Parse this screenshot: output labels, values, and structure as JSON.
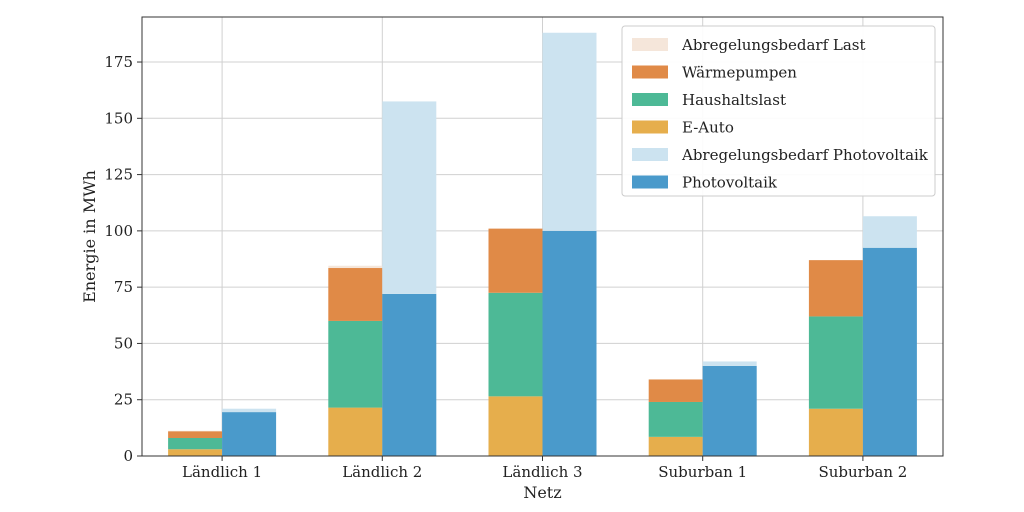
{
  "chart_data": {
    "type": "bar",
    "stacked": true,
    "grouped": true,
    "title": "",
    "xlabel": "Netz",
    "ylabel": "Energie in MWh",
    "ylim": [
      0,
      195
    ],
    "yticks": [
      0,
      25,
      50,
      75,
      100,
      125,
      150,
      175
    ],
    "grid": true,
    "legend_position": "top-right",
    "categories": [
      "Ländlich 1",
      "Ländlich 2",
      "Ländlich 3",
      "Suburban 1",
      "Suburban 2"
    ],
    "stacks": [
      {
        "stack": "last",
        "series": [
          {
            "name": "E-Auto",
            "color": "#E6AE4C",
            "values": [
              3,
              21.5,
              26.5,
              8.5,
              21
            ]
          },
          {
            "name": "Haushaltslast",
            "color": "#4DB996",
            "values": [
              5,
              38.5,
              46,
              15.5,
              41
            ]
          },
          {
            "name": "Wärmepumpen",
            "color": "#E08A47",
            "values": [
              3,
              23.5,
              28.5,
              10,
              25
            ]
          },
          {
            "name": "Abregelungsbedarf Last",
            "color": "#F5E6DA",
            "values": [
              0.2,
              1,
              0,
              0,
              0
            ]
          }
        ]
      },
      {
        "stack": "pv",
        "series": [
          {
            "name": "Photovoltaik",
            "color": "#4A9ACB",
            "values": [
              19.5,
              72,
              100,
              40,
              92.5
            ]
          },
          {
            "name": "Abregelungsbedarf Photovoltaik",
            "color": "#CCE3F0",
            "values": [
              1.5,
              85.5,
              88,
              2,
              14
            ]
          }
        ]
      }
    ],
    "legend": [
      {
        "name": "Abregelungsbedarf Last",
        "color": "#F5E6DA"
      },
      {
        "name": "Wärmepumpen",
        "color": "#E08A47"
      },
      {
        "name": "Haushaltslast",
        "color": "#4DB996"
      },
      {
        "name": "E-Auto",
        "color": "#E6AE4C"
      },
      {
        "name": "Abregelungsbedarf Photovoltaik",
        "color": "#CCE3F0"
      },
      {
        "name": "Photovoltaik",
        "color": "#4A9ACB"
      }
    ]
  }
}
